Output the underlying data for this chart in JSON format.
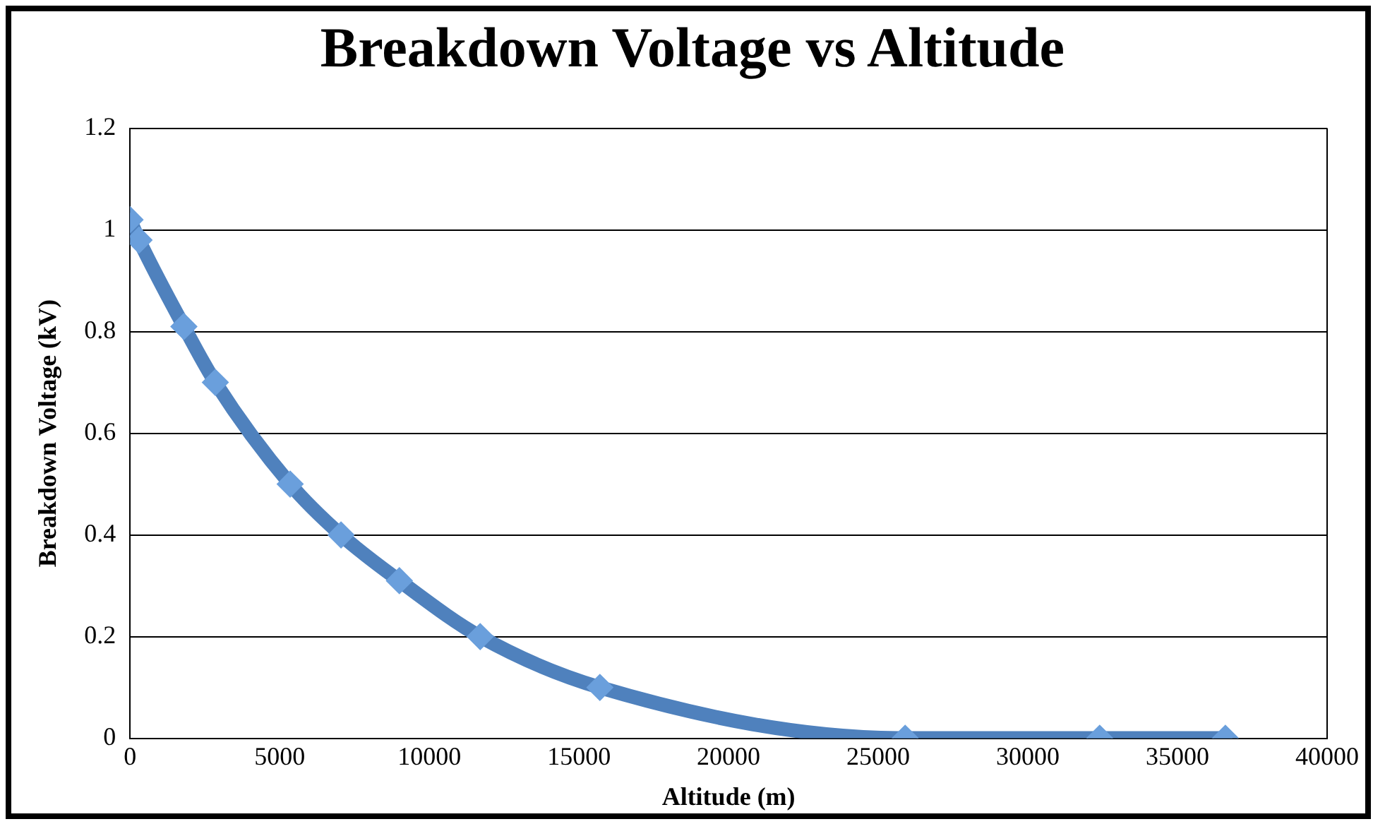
{
  "chart_data": {
    "type": "line",
    "title": "Breakdown Voltage vs Altitude",
    "xlabel": "Altitude (m)",
    "ylabel": "Breakdown Voltage (kV)",
    "x": [
      0,
      300,
      1800,
      2850,
      5350,
      7050,
      9000,
      11700,
      15700,
      25900,
      32400,
      36600
    ],
    "series": [
      {
        "color": "#4f81bd",
        "values": [
          1.02,
          0.98,
          0.81,
          0.7,
          0.5,
          0.4,
          0.31,
          0.2,
          0.1,
          0.0,
          0.0,
          0.0
        ]
      }
    ],
    "xlim": [
      0,
      40000
    ],
    "xticks": [
      0,
      5000,
      10000,
      15000,
      20000,
      25000,
      30000,
      35000,
      40000
    ],
    "ylim": [
      0,
      1.2
    ],
    "yticks": [
      0,
      0.2,
      0.4,
      0.6,
      0.8,
      1,
      1.2
    ],
    "grid": "y",
    "marker": "diamond",
    "line_style": "solid",
    "legend": false
  }
}
